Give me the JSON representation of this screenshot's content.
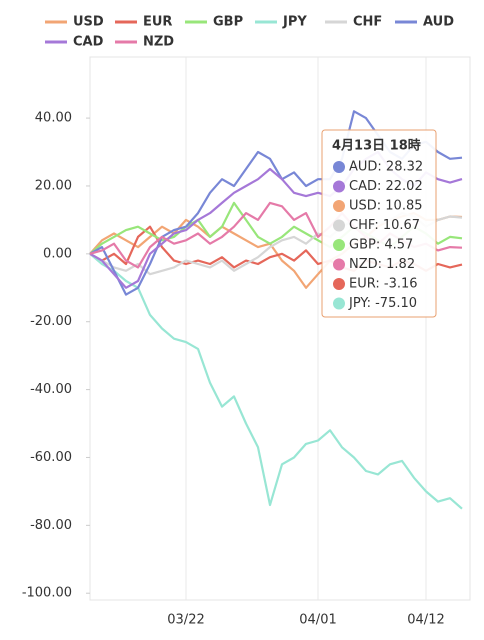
{
  "chart_data": {
    "type": "line",
    "categories": [
      null,
      null,
      null,
      null,
      null,
      null,
      null,
      null,
      "03/22",
      null,
      null,
      null,
      null,
      null,
      null,
      null,
      null,
      null,
      null,
      "04/01",
      null,
      null,
      null,
      null,
      null,
      null,
      null,
      null,
      "04/12",
      null,
      null,
      null
    ],
    "series": [
      {
        "name": "USD",
        "color": "#f2a574",
        "values": [
          0,
          4,
          6,
          4,
          2,
          5,
          8,
          6,
          10,
          8,
          5,
          8,
          6,
          4,
          2,
          3,
          -2,
          -5,
          -10,
          -6,
          -2,
          0,
          3,
          5,
          8,
          10,
          11,
          12,
          10,
          10,
          11,
          10.85
        ]
      },
      {
        "name": "EUR",
        "color": "#e5675a",
        "values": [
          0,
          -2,
          0,
          -3,
          5,
          8,
          2,
          -2,
          -3,
          -2,
          -3,
          -1,
          -4,
          -2,
          -3,
          -1,
          0,
          -2,
          1,
          -3,
          -2,
          -4,
          -5,
          -2,
          -3,
          -4,
          -2,
          -3,
          -5,
          -3,
          -4,
          -3.16
        ]
      },
      {
        "name": "GBP",
        "color": "#98e67a",
        "values": [
          0,
          3,
          5,
          7,
          8,
          6,
          4,
          5,
          8,
          10,
          5,
          8,
          15,
          10,
          5,
          3,
          5,
          8,
          6,
          4,
          2,
          5,
          8,
          6,
          4,
          2,
          5,
          8,
          6,
          3,
          5,
          4.57
        ]
      },
      {
        "name": "JPY",
        "color": "#98e6d4",
        "values": [
          0,
          -3,
          -5,
          -8,
          -10,
          -18,
          -22,
          -25,
          -26,
          -28,
          -38,
          -45,
          -42,
          -50,
          -57,
          -74,
          -62,
          -60,
          -56,
          -55,
          -52,
          -57,
          -60,
          -64,
          -65,
          -62,
          -61,
          -66,
          -70,
          -73,
          -72,
          -75.1
        ]
      },
      {
        "name": "CHF",
        "color": "#d6d6d6",
        "values": [
          0,
          -2,
          -4,
          -5,
          -3,
          -6,
          -5,
          -4,
          -2,
          -3,
          -4,
          -2,
          -5,
          -3,
          -1,
          2,
          4,
          5,
          3,
          6,
          5,
          8,
          10,
          7,
          9,
          10,
          12,
          11,
          8,
          10,
          11,
          10.67
        ]
      },
      {
        "name": "AUD",
        "color": "#7887d6",
        "values": [
          0,
          2,
          -5,
          -12,
          -10,
          -3,
          5,
          7,
          8,
          12,
          18,
          22,
          20,
          25,
          30,
          28,
          22,
          24,
          20,
          22,
          22,
          28,
          42,
          40,
          35,
          30,
          28,
          32,
          33,
          30,
          28,
          28.32
        ]
      },
      {
        "name": "CAD",
        "color": "#a578d8",
        "values": [
          0,
          -2,
          -6,
          -10,
          -8,
          0,
          3,
          6,
          7,
          10,
          12,
          15,
          18,
          20,
          22,
          25,
          22,
          18,
          17,
          18,
          17,
          20,
          25,
          28,
          30,
          25,
          22,
          20,
          24,
          22,
          21,
          22.02
        ]
      },
      {
        "name": "NZD",
        "color": "#e57aa8",
        "values": [
          0,
          1,
          3,
          -2,
          -4,
          2,
          5,
          3,
          4,
          6,
          3,
          5,
          8,
          12,
          10,
          15,
          14,
          10,
          12,
          5,
          8,
          12,
          8,
          5,
          3,
          6,
          4,
          2,
          3,
          1,
          2,
          1.82
        ]
      }
    ],
    "ylim": [
      -102,
      58
    ],
    "yticks": [
      {
        "value": -100,
        "label": "-100.00"
      },
      {
        "value": -80,
        "label": "-80.00"
      },
      {
        "value": -60,
        "label": "-60.00"
      },
      {
        "value": -40,
        "label": "-40.00"
      },
      {
        "value": -20,
        "label": "-20.00"
      },
      {
        "value": 0,
        "label": "0.00"
      },
      {
        "value": 20,
        "label": "20.00"
      },
      {
        "value": 40,
        "label": "40.00"
      }
    ],
    "tooltip": {
      "title": "4月13日 18時",
      "items": [
        {
          "text": "AUD: 28.32",
          "color": "#7887d6"
        },
        {
          "text": "CAD: 22.02",
          "color": "#a578d8"
        },
        {
          "text": "USD: 10.85",
          "color": "#f2a574"
        },
        {
          "text": "CHF: 10.67",
          "color": "#d6d6d6"
        },
        {
          "text": "GBP: 4.57",
          "color": "#98e67a"
        },
        {
          "text": "NZD: 1.82",
          "color": "#e57aa8"
        },
        {
          "text": "EUR: -3.16",
          "color": "#e5675a"
        },
        {
          "text": "JPY: -75.10",
          "color": "#98e6d4"
        }
      ]
    }
  }
}
